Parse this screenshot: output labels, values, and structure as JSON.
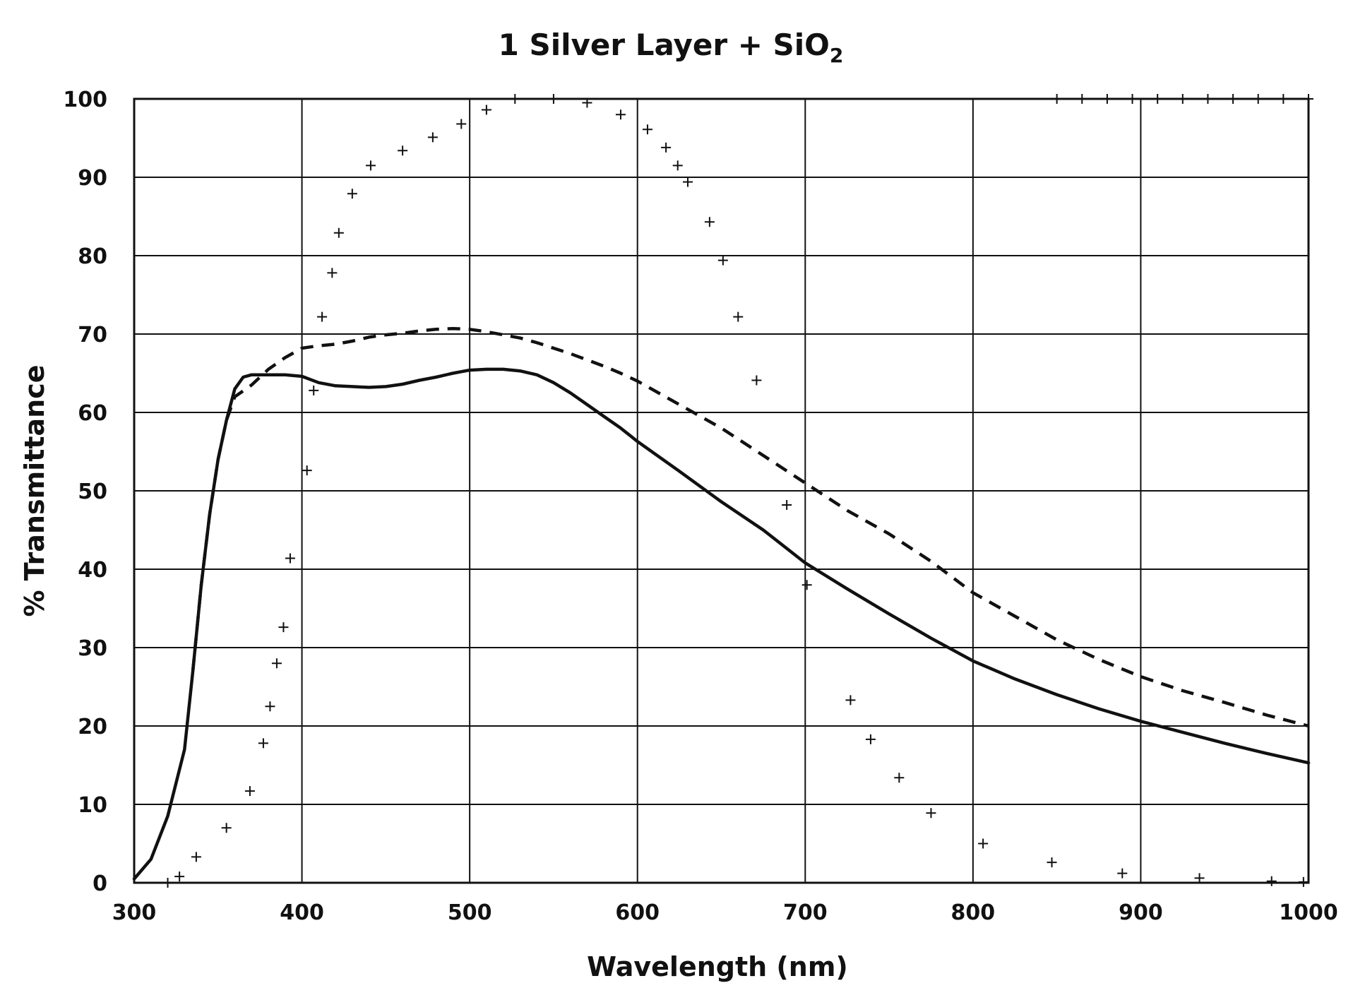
{
  "chart_data": {
    "type": "line",
    "title": {
      "main": "1 Silver Layer + SiO",
      "subscript": "2"
    },
    "xlabel": "Wavelength (nm)",
    "ylabel": "% Transmittance",
    "xlim": [
      300,
      1000
    ],
    "ylim": [
      0,
      100
    ],
    "x_ticks": [
      300,
      400,
      500,
      600,
      700,
      800,
      900,
      1000
    ],
    "y_ticks": [
      0,
      10,
      20,
      30,
      40,
      50,
      60,
      70,
      80,
      90,
      100
    ],
    "grid": true,
    "legend": "none",
    "series": [
      {
        "style": "solid",
        "color": "#111111",
        "points": [
          [
            300,
            0.5
          ],
          [
            310,
            3
          ],
          [
            320,
            8.5
          ],
          [
            330,
            17
          ],
          [
            335,
            27
          ],
          [
            340,
            38
          ],
          [
            345,
            47
          ],
          [
            350,
            54
          ],
          [
            355,
            59
          ],
          [
            360,
            63
          ],
          [
            365,
            64.5
          ],
          [
            370,
            64.8
          ],
          [
            380,
            64.8
          ],
          [
            390,
            64.8
          ],
          [
            400,
            64.6
          ],
          [
            410,
            63.8
          ],
          [
            420,
            63.4
          ],
          [
            430,
            63.3
          ],
          [
            440,
            63.2
          ],
          [
            450,
            63.3
          ],
          [
            460,
            63.6
          ],
          [
            470,
            64.1
          ],
          [
            480,
            64.5
          ],
          [
            490,
            65
          ],
          [
            500,
            65.4
          ],
          [
            510,
            65.5
          ],
          [
            520,
            65.5
          ],
          [
            530,
            65.3
          ],
          [
            540,
            64.8
          ],
          [
            550,
            63.8
          ],
          [
            560,
            62.5
          ],
          [
            570,
            61
          ],
          [
            580,
            59.5
          ],
          [
            590,
            58
          ],
          [
            600,
            56.3
          ],
          [
            625,
            52.5
          ],
          [
            650,
            48.6
          ],
          [
            675,
            45
          ],
          [
            700,
            40.8
          ],
          [
            725,
            37.5
          ],
          [
            750,
            34.3
          ],
          [
            775,
            31.2
          ],
          [
            800,
            28.3
          ],
          [
            825,
            26
          ],
          [
            850,
            24
          ],
          [
            875,
            22.2
          ],
          [
            900,
            20.6
          ],
          [
            925,
            19.2
          ],
          [
            950,
            17.8
          ],
          [
            975,
            16.5
          ],
          [
            1000,
            15.3
          ]
        ]
      },
      {
        "style": "dashed",
        "color": "#111111",
        "points": [
          [
            335,
            27
          ],
          [
            340,
            38
          ],
          [
            345,
            47
          ],
          [
            350,
            54
          ],
          [
            355,
            59
          ],
          [
            360,
            62
          ],
          [
            370,
            63.5
          ],
          [
            380,
            65.5
          ],
          [
            390,
            67
          ],
          [
            400,
            68.2
          ],
          [
            410,
            68.5
          ],
          [
            420,
            68.7
          ],
          [
            430,
            69.1
          ],
          [
            440,
            69.6
          ],
          [
            450,
            69.9
          ],
          [
            460,
            70.1
          ],
          [
            470,
            70.4
          ],
          [
            480,
            70.6
          ],
          [
            490,
            70.7
          ],
          [
            500,
            70.6
          ],
          [
            510,
            70.3
          ],
          [
            520,
            69.9
          ],
          [
            530,
            69.5
          ],
          [
            540,
            68.9
          ],
          [
            550,
            68.2
          ],
          [
            560,
            67.5
          ],
          [
            570,
            66.7
          ],
          [
            580,
            65.9
          ],
          [
            590,
            65
          ],
          [
            600,
            64
          ],
          [
            625,
            61
          ],
          [
            650,
            58
          ],
          [
            675,
            54.5
          ],
          [
            700,
            51
          ],
          [
            725,
            47.5
          ],
          [
            750,
            44.5
          ],
          [
            775,
            41
          ],
          [
            800,
            37
          ],
          [
            825,
            34
          ],
          [
            850,
            31
          ],
          [
            875,
            28.5
          ],
          [
            900,
            26.3
          ],
          [
            925,
            24.5
          ],
          [
            950,
            23
          ],
          [
            975,
            21.4
          ],
          [
            1000,
            20
          ]
        ]
      },
      {
        "style": "plus-markers",
        "color": "#111111",
        "points": [
          [
            320,
            0
          ],
          [
            327,
            0.8
          ],
          [
            337,
            3.3
          ],
          [
            355,
            7
          ],
          [
            369,
            11.7
          ],
          [
            377,
            17.8
          ],
          [
            381,
            22.5
          ],
          [
            385,
            28
          ],
          [
            389,
            32.6
          ],
          [
            393,
            41.4
          ],
          [
            403,
            52.6
          ],
          [
            407,
            62.8
          ],
          [
            412,
            72.2
          ],
          [
            418,
            77.8
          ],
          [
            422,
            82.9
          ],
          [
            430,
            87.9
          ],
          [
            441,
            91.5
          ],
          [
            460,
            93.4
          ],
          [
            478,
            95.1
          ],
          [
            495,
            96.8
          ],
          [
            510,
            98.6
          ],
          [
            527,
            100
          ],
          [
            550,
            100
          ],
          [
            570,
            99.5
          ],
          [
            590,
            98
          ],
          [
            606,
            96.1
          ],
          [
            617,
            93.8
          ],
          [
            624,
            91.5
          ],
          [
            630,
            89.4
          ],
          [
            643,
            84.3
          ],
          [
            651,
            79.4
          ],
          [
            660,
            72.2
          ],
          [
            671,
            64.1
          ],
          [
            689,
            48.2
          ],
          [
            701,
            38
          ],
          [
            727,
            23.3
          ],
          [
            739,
            18.3
          ],
          [
            756,
            13.4
          ],
          [
            775,
            8.9
          ],
          [
            806,
            5
          ],
          [
            847,
            2.6
          ],
          [
            889,
            1.2
          ],
          [
            935,
            0.6
          ],
          [
            978,
            0.2
          ],
          [
            997,
            0.1
          ],
          [
            850,
            100
          ],
          [
            865,
            100
          ],
          [
            880,
            100
          ],
          [
            895,
            100
          ],
          [
            910,
            100
          ],
          [
            925,
            100
          ],
          [
            940,
            100
          ],
          [
            955,
            100
          ],
          [
            970,
            100
          ],
          [
            985,
            100
          ],
          [
            1000,
            100
          ]
        ]
      }
    ]
  }
}
